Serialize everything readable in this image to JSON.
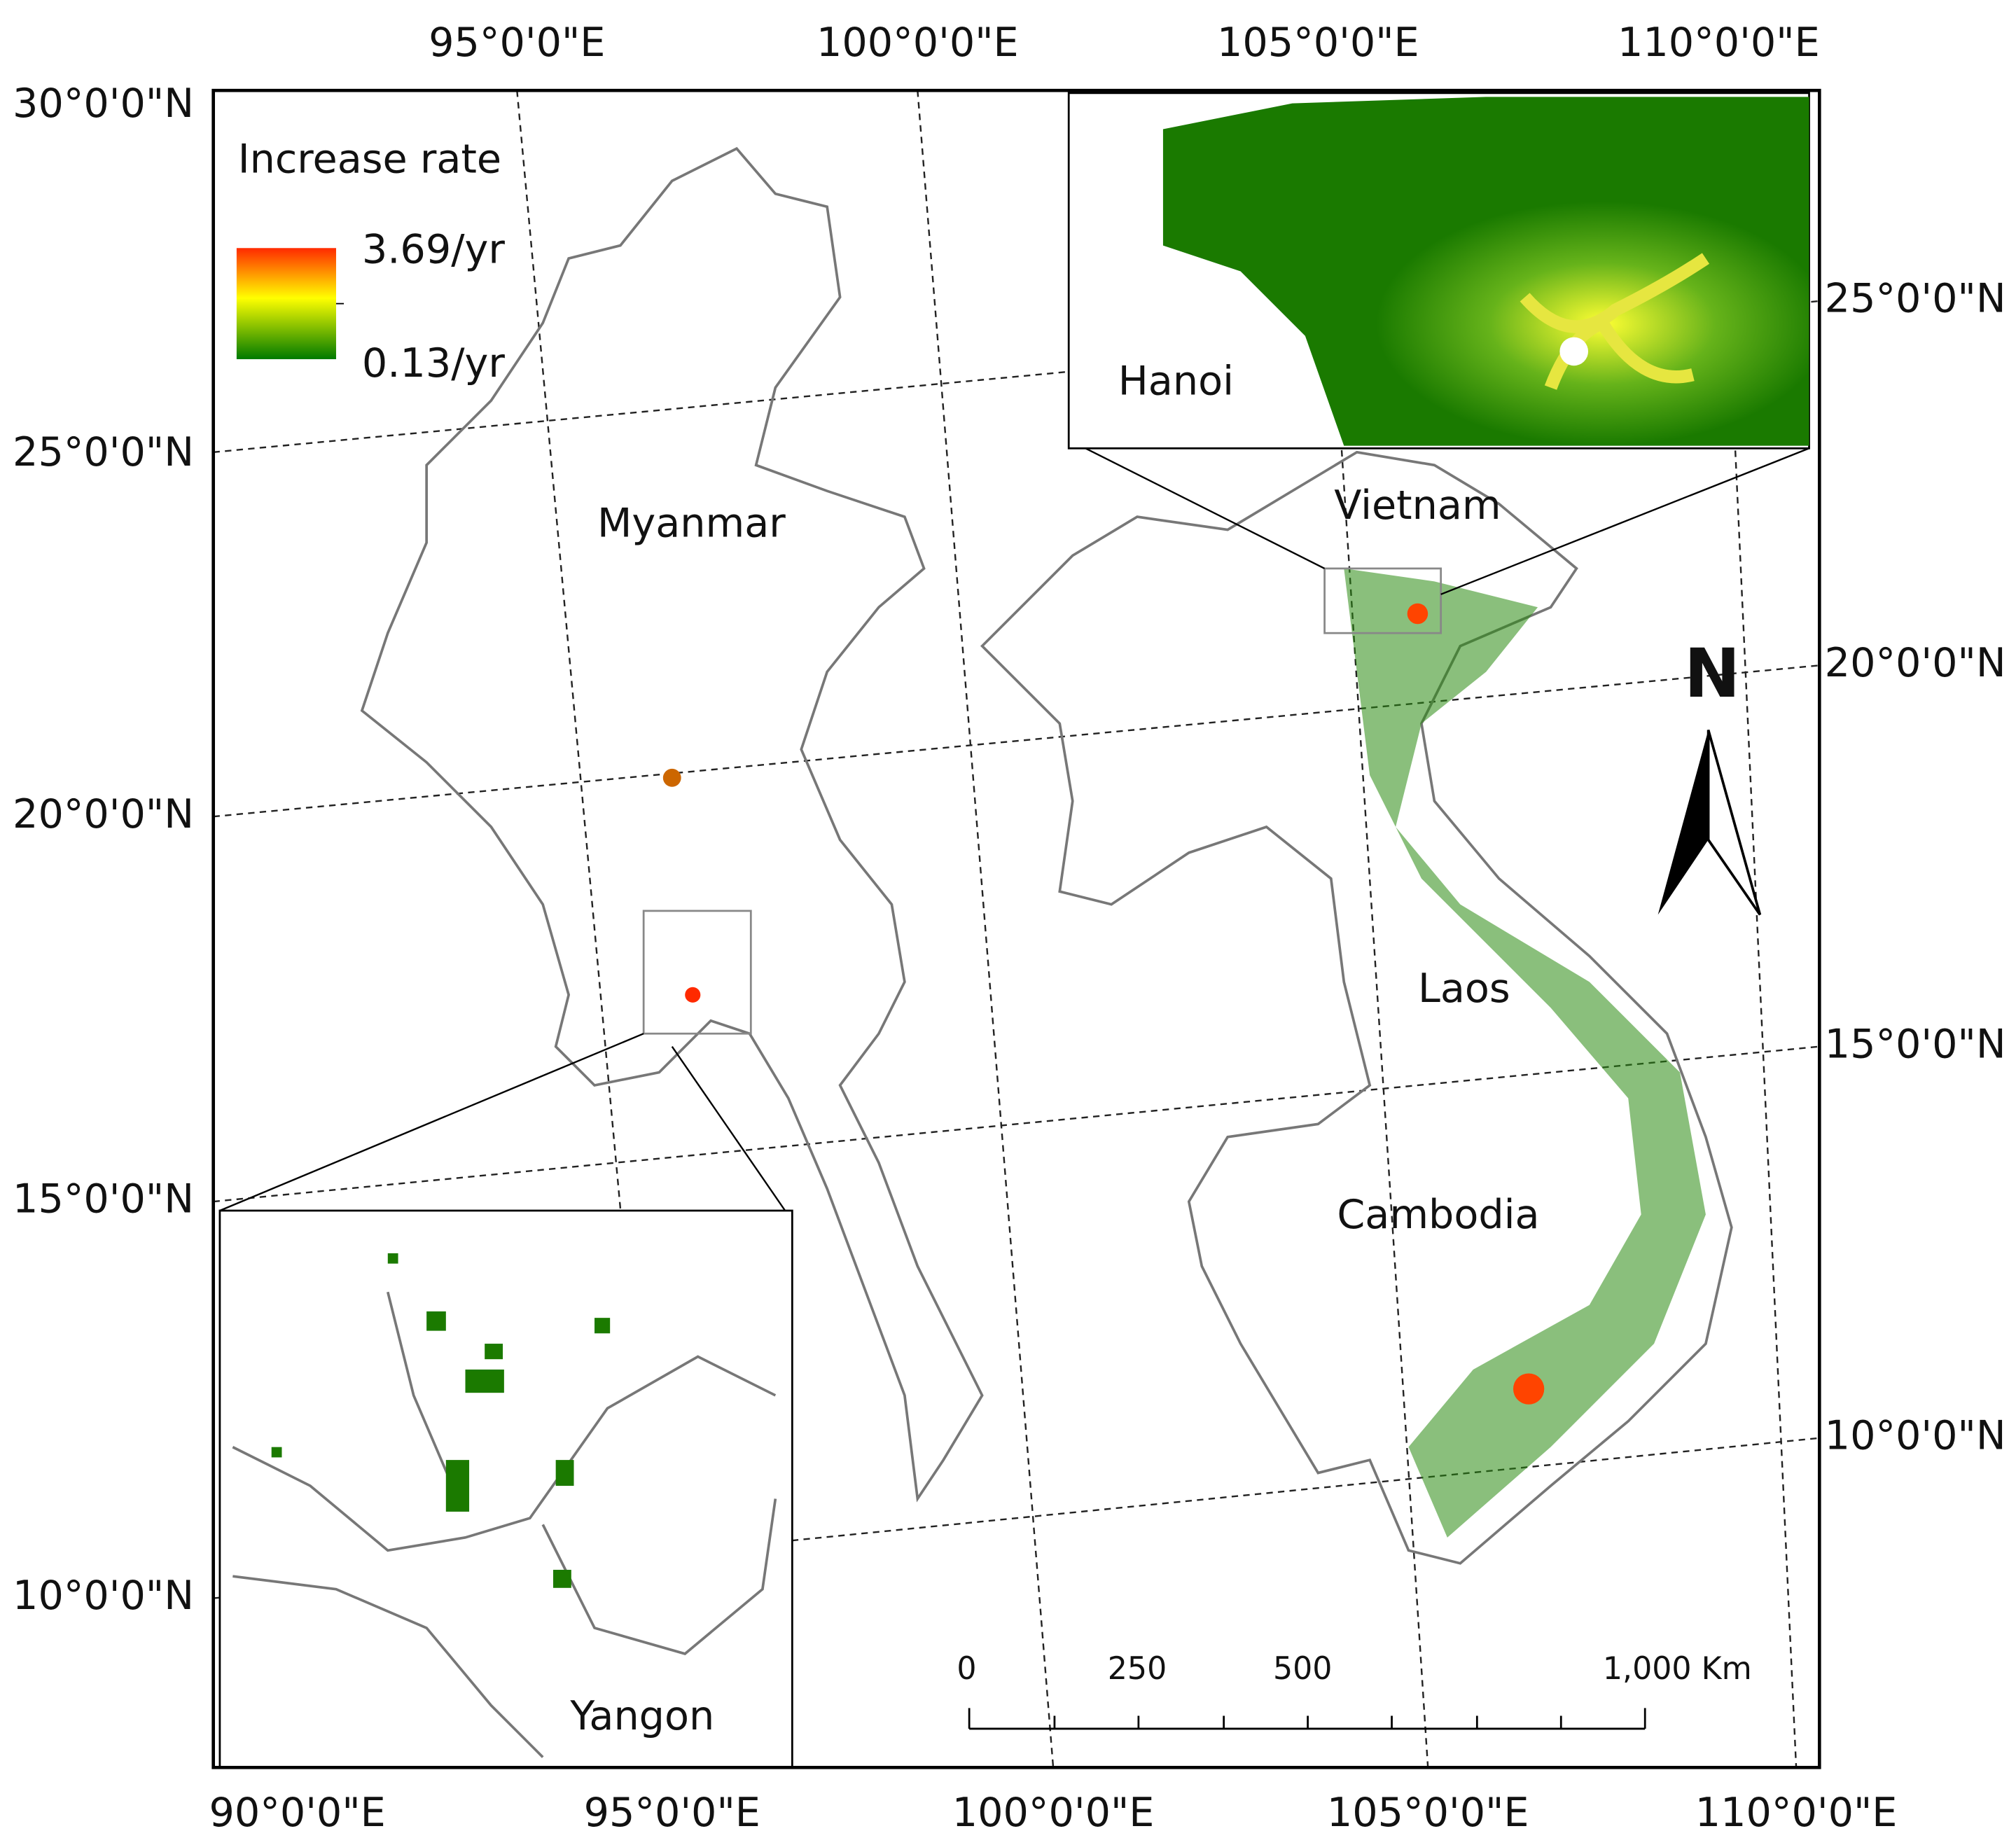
{
  "legend": {
    "title": "Increase rate",
    "max_label": "3.69/yr",
    "min_label": "0.13/yr"
  },
  "top_axis_labels": [
    "95°0'0\"E",
    "100°0'0\"E",
    "105°0'0\"E",
    "110°0'0\"E"
  ],
  "bottom_axis_labels": [
    "90°0'0\"E",
    "95°0'0\"E",
    "100°0'0\"E",
    "105°0'0\"E",
    "110°0'0\"E"
  ],
  "left_axis_labels": [
    "30°0'0\"N",
    "25°0'0\"N",
    "20°0'0\"N",
    "15°0'0\"N",
    "10°0'0\"N"
  ],
  "right_axis_labels": [
    "25°0'0\"N",
    "20°0'0\"N",
    "15°0'0\"N",
    "10°0'0\"N"
  ],
  "country_labels": [
    "Myanmar",
    "Vietnam",
    "Laos",
    "Cambodia"
  ],
  "inset_labels": [
    "Hanoi",
    "Yangon"
  ],
  "scale_bar_labels": [
    "0",
    "250",
    "500",
    "1,000 Km"
  ],
  "north_arrow": "N"
}
